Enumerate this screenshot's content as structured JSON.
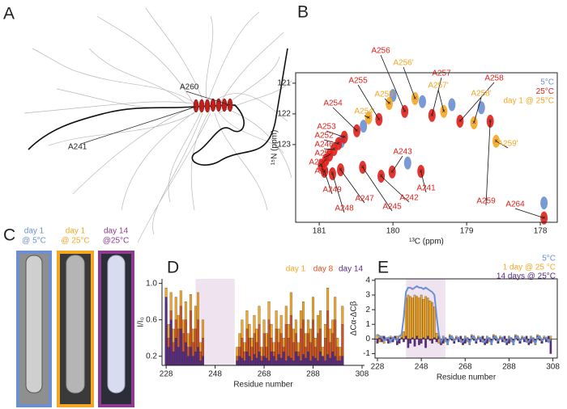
{
  "panel_labels": [
    "A",
    "B",
    "C",
    "D",
    "E"
  ],
  "panel_a": {
    "labels": [
      "A260",
      "A241"
    ]
  },
  "panel_c": {
    "tubes": [
      {
        "lines": [
          "day 1",
          "@ 5°C"
        ],
        "color": "#6b8fd0"
      },
      {
        "lines": [
          "day 1",
          "@ 25°C"
        ],
        "color": "#f5a623"
      },
      {
        "lines": [
          "day 14",
          "@25°C"
        ],
        "color": "#8e3a8e"
      }
    ]
  },
  "chart_data": [
    {
      "type": "scatter",
      "xlabel": "¹³C (ppm)",
      "ylabel": "¹⁵N (ppm)",
      "xlim": [
        181.32,
        177.77
      ],
      "ylim": [
        125.53,
        120.66
      ],
      "xticks": [
        181,
        180,
        179,
        178
      ],
      "yticks": [
        121,
        122,
        123
      ],
      "series": [
        {
          "name": "5°C",
          "color": "#6b8fd0",
          "x": [
            180.0,
            179.6,
            179.2,
            178.8,
            180.4,
            180.7,
            179.8,
            177.95
          ],
          "y": [
            121.4,
            121.6,
            121.7,
            121.8,
            122.4,
            122.9,
            123.6,
            124.9
          ]
        },
        {
          "name": "25°C",
          "color": "#e0201b",
          "labels": [
            "A256",
            "A257",
            "A258",
            "A255",
            "A254",
            "A253",
            "A252",
            "A246",
            "A251",
            "A250",
            "A244",
            "A249",
            "A248",
            "A247",
            "A245",
            "A242",
            "A241",
            "A243",
            "A259",
            "A264"
          ],
          "x": [
            179.84,
            179.47,
            179.09,
            180.19,
            180.49,
            180.66,
            180.74,
            180.8,
            180.86,
            180.91,
            180.97,
            180.93,
            180.82,
            180.71,
            180.41,
            180.16,
            179.62,
            180.01,
            178.68,
            177.95
          ],
          "y": [
            121.92,
            122.05,
            122.24,
            122.18,
            122.55,
            122.76,
            122.97,
            123.16,
            123.34,
            123.5,
            123.68,
            123.87,
            123.95,
            123.82,
            123.74,
            124.03,
            123.87,
            123.89,
            122.24,
            125.39
          ]
        },
        {
          "name": "day 1 @ 25°C",
          "color": "#f5a623",
          "labels": [
            "A256'",
            "A257'",
            "A258'",
            "A255'",
            "A254'",
            "A259'"
          ],
          "x": [
            179.7,
            179.31,
            178.9,
            180.05,
            180.33,
            178.6
          ],
          "y": [
            121.5,
            121.92,
            122.29,
            121.66,
            122.13,
            122.89
          ]
        }
      ]
    },
    {
      "type": "bar",
      "xlabel": "Residue number",
      "ylabel": "I/I₀",
      "xlim": [
        226.3,
        309
      ],
      "ylim": [
        0.1,
        1.05
      ],
      "xticks": [
        228,
        248,
        268,
        288,
        308
      ],
      "yticks": [
        0.2,
        0.6,
        {
          "value": 1,
          "label": "1.0"
        }
      ],
      "highlight": [
        240,
        256
      ],
      "x": [
        228,
        229,
        230,
        231,
        232,
        233,
        234,
        235,
        236,
        237,
        238,
        239,
        240,
        241,
        242,
        243,
        244,
        245,
        246,
        247,
        248,
        249,
        250,
        251,
        252,
        253,
        254,
        255,
        256,
        257,
        258,
        259,
        260,
        261,
        262,
        263,
        264,
        265,
        266,
        267,
        268,
        269,
        270,
        271,
        272,
        273,
        274,
        275,
        276,
        277,
        278,
        279,
        280,
        281,
        282,
        283,
        284,
        285,
        286,
        287,
        288,
        289,
        290,
        291,
        292,
        293,
        294,
        295,
        296,
        297,
        298,
        299,
        300
      ],
      "series": [
        {
          "name": "day 1",
          "color": "#f5a623",
          "values": [
            0.95,
            0.55,
            0.9,
            0.5,
            0.85,
            0.65,
            0.92,
            0.6,
            0.8,
            0.45,
            0.88,
            0.5,
            0.75,
            0.9,
            0.35,
            0.6,
            null,
            null,
            null,
            null,
            null,
            null,
            null,
            null,
            null,
            null,
            null,
            null,
            null,
            0.3,
            0.45,
            0.6,
            0.35,
            0.7,
            0.55,
            0.4,
            0.65,
            0.5,
            0.75,
            0.3,
            0.6,
            0.45,
            0.8,
            0.55,
            0.35,
            0.7,
            0.5,
            0.65,
            0.4,
            0.75,
            0.55,
            0.9,
            0.5,
            0.6,
            0.35,
            0.7,
            0.8,
            0.45,
            0.6,
            0.5,
            0.85,
            0.4,
            0.65,
            0.7,
            0.3,
            0.55,
            0.95,
            0.5,
            0.6,
            0.85,
            0.4,
            0.3,
            0.75
          ]
        },
        {
          "name": "day 8",
          "color": "#d9541e",
          "values": [
            0.8,
            0.4,
            0.7,
            0.35,
            0.6,
            0.5,
            0.75,
            0.45,
            0.6,
            0.3,
            0.7,
            0.35,
            0.5,
            0.6,
            0.25,
            0.4,
            null,
            null,
            null,
            null,
            null,
            null,
            null,
            null,
            null,
            null,
            null,
            null,
            null,
            0.2,
            0.3,
            0.4,
            0.25,
            0.5,
            0.4,
            0.3,
            0.45,
            0.35,
            0.55,
            0.2,
            0.45,
            0.3,
            0.6,
            0.4,
            0.25,
            0.5,
            0.35,
            0.45,
            0.3,
            0.55,
            0.4,
            0.65,
            0.35,
            0.45,
            0.25,
            0.5,
            0.6,
            0.3,
            0.45,
            0.35,
            0.6,
            0.3,
            0.45,
            0.5,
            0.2,
            0.4,
            0.7,
            0.35,
            0.45,
            0.6,
            0.3,
            0.2,
            0.55
          ]
        },
        {
          "name": "day 14",
          "color": "#5b2a86",
          "values": [
            0.85,
            0.3,
            0.6,
            0.25,
            0.4,
            0.3,
            0.5,
            0.25,
            0.35,
            0.2,
            0.3,
            0.2,
            0.25,
            0.3,
            0.15,
            0.2,
            null,
            null,
            null,
            null,
            null,
            null,
            null,
            null,
            null,
            null,
            null,
            null,
            null,
            0.15,
            0.2,
            0.18,
            0.15,
            0.25,
            0.2,
            0.15,
            0.22,
            0.18,
            0.25,
            0.15,
            0.2,
            0.18,
            0.15,
            0.25,
            0.2,
            0.15,
            0.22,
            0.18,
            0.25,
            0.15,
            0.2,
            0.18,
            0.15,
            0.25,
            0.2,
            0.15,
            0.22,
            0.18,
            0.25,
            0.15,
            0.2,
            0.18,
            0.15,
            0.25,
            0.2,
            0.15,
            0.22,
            0.18,
            0.25,
            0.2,
            0.15,
            0.15,
            0.2
          ]
        }
      ]
    },
    {
      "type": "bar",
      "xlabel": "Residue number",
      "ylabel": "ΔCα-ΔCβ",
      "xlim": [
        226.9,
        310
      ],
      "ylim": [
        -1.3,
        4.1
      ],
      "xticks": [
        228,
        248,
        268,
        288,
        308
      ],
      "yticks": [
        -1,
        0,
        1,
        2,
        3,
        4
      ],
      "highlight": [
        241,
        259
      ],
      "x": [
        228,
        229,
        230,
        231,
        232,
        233,
        234,
        235,
        236,
        237,
        238,
        239,
        240,
        241,
        242,
        243,
        244,
        245,
        246,
        247,
        248,
        249,
        250,
        251,
        252,
        253,
        254,
        255,
        256,
        257,
        258,
        259,
        260,
        261,
        262,
        263,
        264,
        265,
        266,
        267,
        268,
        269,
        270,
        271,
        272,
        273,
        274,
        275,
        276,
        277,
        278,
        279,
        280,
        281,
        282,
        283,
        284,
        285,
        286,
        287,
        288,
        289,
        290,
        291,
        292,
        293,
        294,
        295,
        296,
        297,
        298,
        299,
        300,
        301,
        302,
        303,
        304,
        305,
        306,
        307
      ],
      "series": [
        {
          "name": "5°C",
          "color": "#6b8fd0",
          "style": "line",
          "values": [
            0.3,
            0.2,
            0.1,
            -0.1,
            0.0,
            0.1,
            -0.2,
            0.1,
            0.0,
            -0.1,
            0.2,
            0.3,
            1.5,
            3.2,
            3.5,
            3.5,
            3.4,
            3.5,
            3.6,
            3.5,
            3.5,
            3.4,
            3.5,
            3.4,
            3.3,
            3.2,
            3.0,
            1.5,
            0.3,
            -0.2,
            0.1,
            0.0,
            -0.3,
            0.1,
            0.2,
            -0.1,
            0.0,
            0.1,
            -0.2,
            -0.2,
            0.1,
            0.0,
            -0.3,
            0.1,
            0.2,
            -0.1,
            0.0,
            0.1,
            -0.2,
            -0.2,
            0.1,
            0.0,
            -0.3,
            0.1,
            0.2,
            -0.1,
            0.0,
            0.1,
            -0.2,
            -0.2,
            0.1,
            0.0,
            -0.3,
            0.1,
            0.2,
            -0.1,
            0.0,
            0.1,
            -0.2,
            -0.2,
            0.1,
            0.0,
            -0.3,
            0.1,
            0.2,
            -0.1,
            0.0,
            0.1,
            -0.2,
            0.0
          ]
        },
        {
          "name": "1 day @ 25 °C",
          "color": "#f5a623",
          "values": [
            0.3,
            -0.2,
            0.2,
            -0.3,
            0.1,
            -0.1,
            0.2,
            -0.2,
            0.1,
            0.2,
            -0.1,
            0.3,
            0.5,
            2.8,
            3.0,
            2.9,
            2.8,
            3.0,
            2.9,
            2.8,
            3.0,
            2.7,
            2.9,
            2.8,
            2.6,
            2.5,
            2.2,
            0.4,
            -0.3,
            -0.3,
            0.2,
            -0.2,
            -0.4,
            0.3,
            0.1,
            -0.3,
            0.2,
            -0.1,
            -0.2,
            -0.3,
            0.2,
            -0.2,
            -0.4,
            0.3,
            0.1,
            -0.3,
            0.2,
            -0.1,
            -0.2,
            -0.3,
            0.2,
            -0.2,
            -0.4,
            0.3,
            0.1,
            -0.3,
            0.2,
            -0.1,
            -0.2,
            -0.3,
            0.2,
            -0.2,
            -0.4,
            0.3,
            0.1,
            -0.3,
            0.2,
            -0.1,
            -0.2,
            -0.3,
            0.2,
            -0.2,
            -0.4,
            0.3,
            0.1,
            -0.3,
            0.2,
            -0.1,
            -0.2,
            0.2
          ]
        },
        {
          "name": "14 days @ 25°C",
          "color": "#5b2a86",
          "values": [
            -0.3,
            0.1,
            -0.2,
            0.2,
            -0.1,
            -0.3,
            0.1,
            -0.2,
            0.2,
            -0.4,
            -0.3,
            0.1,
            -0.2,
            0.2,
            -0.6,
            -0.3,
            0.1,
            -0.5,
            0.2,
            -0.4,
            -0.3,
            0.1,
            -0.6,
            0.2,
            -0.1,
            -0.3,
            0.1,
            -0.2,
            0.2,
            -0.4,
            -0.3,
            0.1,
            -0.2,
            0.2,
            -0.1,
            -0.3,
            0.1,
            -0.2,
            0.2,
            -0.4,
            -0.3,
            0.1,
            -0.2,
            0.2,
            -0.1,
            -0.3,
            0.1,
            -0.2,
            0.2,
            -0.4,
            -0.3,
            0.1,
            -0.2,
            0.2,
            -0.1,
            -0.3,
            0.1,
            -0.2,
            0.2,
            -0.4,
            -0.3,
            0.1,
            -0.2,
            0.2,
            -0.1,
            -0.3,
            0.1,
            -0.2,
            0.2,
            -0.4,
            -0.3,
            0.1,
            -0.2,
            0.2,
            -0.1,
            -0.3,
            0.1,
            -0.2,
            0.2,
            -1.0
          ]
        }
      ]
    }
  ]
}
